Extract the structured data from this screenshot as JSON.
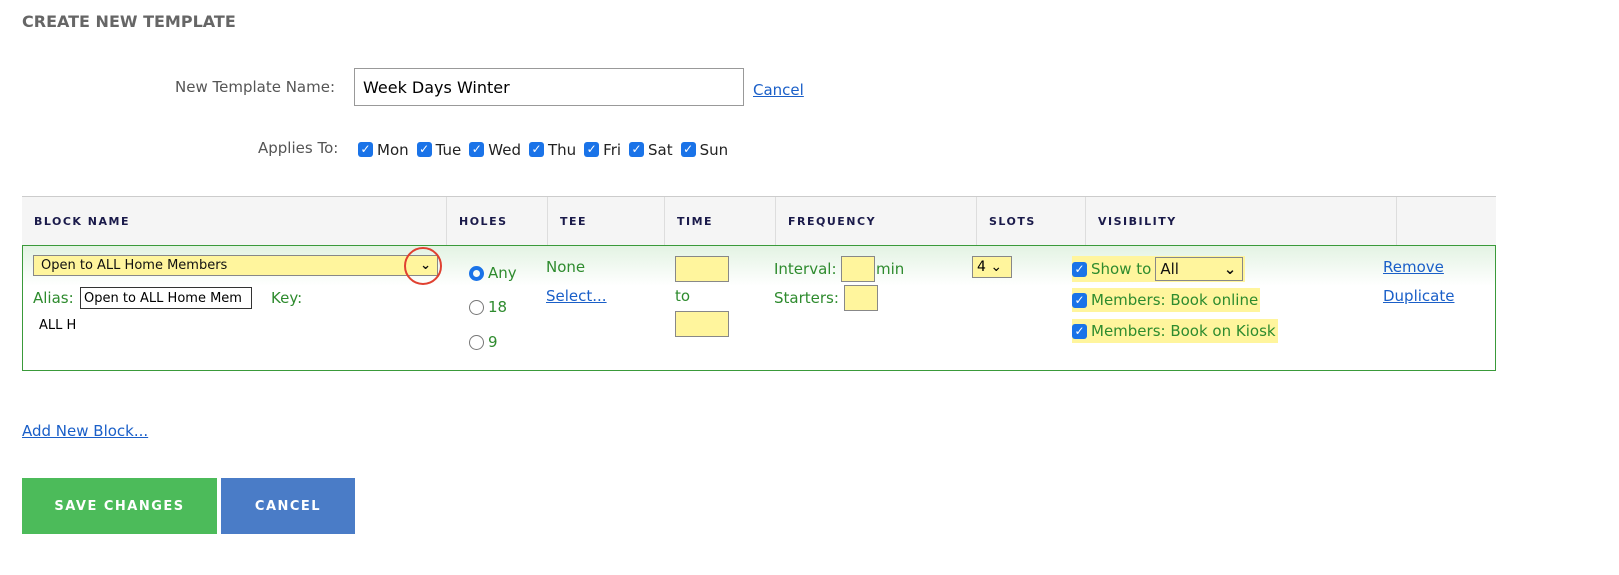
{
  "title": "CREATE NEW TEMPLATE",
  "template_name": {
    "label": "New Template Name:",
    "value": "Week Days Winter",
    "cancel": "Cancel"
  },
  "applies_to": {
    "label": "Applies To:",
    "days": [
      "Mon",
      "Tue",
      "Wed",
      "Thu",
      "Fri",
      "Sat",
      "Sun"
    ]
  },
  "columns": [
    "BLOCK NAME",
    "HOLES",
    "TEE",
    "TIME",
    "FREQUENCY",
    "SLOTS",
    "VISIBILITY",
    ""
  ],
  "block": {
    "name": "Open to ALL Home Members",
    "alias_label": "Alias:",
    "alias": "Open to ALL Home Mem",
    "key_label": "Key:",
    "key": "ALL H",
    "holes": [
      "Any",
      "18",
      "9"
    ],
    "holes_selected": "Any",
    "tee": "None",
    "tee_select": "Select...",
    "time_to": "to",
    "interval_label": "Interval:",
    "interval_unit": "min",
    "starters_label": "Starters:",
    "slots": "4",
    "show_to_label": "Show to",
    "show_to": "All",
    "book_online": "Members: Book online",
    "book_kiosk": "Members: Book on Kiosk",
    "remove": "Remove",
    "duplicate": "Duplicate"
  },
  "add_block": "Add New Block...",
  "save": "SAVE CHANGES",
  "cancel": "CANCEL",
  "colors": {
    "save": "#4cbb5a",
    "cancel": "#4a7cc7",
    "highlight": "#fff59d",
    "annotation": "#e04030"
  }
}
